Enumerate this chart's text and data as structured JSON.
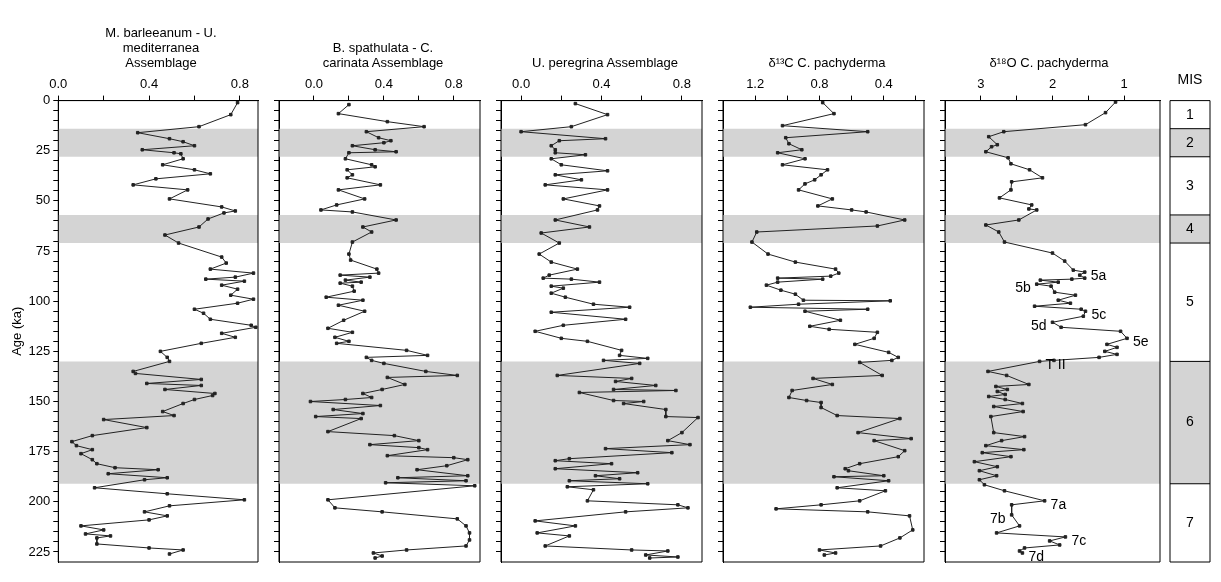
{
  "chart_data": [
    {
      "type": "line",
      "orientation": "horizontal",
      "title": "M. barleeanum - U. mediterranea Assemblage",
      "ylabel": "Age (ka)",
      "xlim": [
        0,
        0.88
      ],
      "xticks": [
        {
          "value": 0,
          "label": "0.0"
        },
        {
          "value": 0.2,
          "label": null
        },
        0.4,
        {
          "value": 0.6,
          "label": null
        },
        0.8
      ],
      "ylim": [
        230,
        0
      ],
      "yticks": [
        0,
        {
          "value": 5,
          "label": null
        },
        {
          "value": 10,
          "label": null
        },
        {
          "value": 15,
          "label": null
        },
        {
          "value": 20,
          "label": null
        },
        25,
        {
          "value": 30,
          "label": null
        },
        {
          "value": 35,
          "label": null
        },
        {
          "value": 40,
          "label": null
        },
        {
          "value": 45,
          "label": null
        },
        50,
        {
          "value": 55,
          "label": null
        },
        {
          "value": 60,
          "label": null
        },
        {
          "value": 65,
          "label": null
        },
        {
          "value": 70,
          "label": null
        },
        75,
        {
          "value": 80,
          "label": null
        },
        {
          "value": 85,
          "label": null
        },
        {
          "value": 90,
          "label": null
        },
        {
          "value": 95,
          "label": null
        },
        100,
        {
          "value": 105,
          "label": null
        },
        {
          "value": 110,
          "label": null
        },
        {
          "value": 115,
          "label": null
        },
        {
          "value": 120,
          "label": null
        },
        125,
        {
          "value": 130,
          "label": null
        },
        {
          "value": 135,
          "label": null
        },
        {
          "value": 140,
          "label": null
        },
        {
          "value": 145,
          "label": null
        },
        150,
        {
          "value": 155,
          "label": null
        },
        {
          "value": 160,
          "label": null
        },
        {
          "value": 165,
          "label": null
        },
        {
          "value": 170,
          "label": null
        },
        175,
        {
          "value": 180,
          "label": null
        },
        {
          "value": 185,
          "label": null
        },
        {
          "value": 190,
          "label": null
        },
        {
          "value": 195,
          "label": null
        },
        200,
        {
          "value": 205,
          "label": null
        },
        {
          "value": 210,
          "label": null
        },
        {
          "value": 215,
          "label": null
        },
        {
          "value": 220,
          "label": null
        },
        225
      ],
      "grid": false,
      "legend": false,
      "marker": "square",
      "line_style": "solid",
      "bands": [
        {
          "axis": "y",
          "from": 14,
          "to": 28,
          "color": "#d4d4d4"
        },
        {
          "axis": "y",
          "from": 57,
          "to": 71,
          "color": "#d4d4d4"
        },
        {
          "axis": "y",
          "from": 130,
          "to": 191,
          "color": "#d4d4d4"
        }
      ],
      "x": [
        1,
        7,
        13,
        16,
        19,
        20.5,
        22.5,
        24.5,
        26,
        26.5,
        29,
        32,
        34.5,
        36.5,
        39,
        42,
        44.5,
        49,
        53,
        55,
        56,
        59,
        63,
        67,
        71,
        78,
        81,
        84,
        86,
        88,
        89,
        90,
        92,
        94,
        97,
        99,
        101,
        104,
        106,
        109,
        112,
        113,
        116,
        118,
        121,
        125,
        128,
        130,
        135,
        136,
        139,
        141,
        142,
        144,
        146,
        147,
        149,
        151,
        155,
        157,
        159,
        163,
        167,
        170,
        172,
        174,
        176,
        179,
        181,
        183,
        184,
        186,
        188,
        189,
        193,
        196,
        199,
        202,
        205,
        207,
        209,
        212,
        214,
        216,
        217,
        218,
        221,
        223,
        224,
        226
      ],
      "series": [
        {
          "color": "#222222",
          "values": [
            0.79,
            0.76,
            0.62,
            0.35,
            0.49,
            0.55,
            0.6,
            0.37,
            0.51,
            0.54,
            0.55,
            0.46,
            0.6,
            0.67,
            0.43,
            0.33,
            0.57,
            0.49,
            0.72,
            0.78,
            0.73,
            0.66,
            0.62,
            0.47,
            0.53,
            0.72,
            0.74,
            0.67,
            0.86,
            0.78,
            0.65,
            0.82,
            0.72,
            0.79,
            0.76,
            0.86,
            0.79,
            0.6,
            0.64,
            0.67,
            0.85,
            0.87,
            0.72,
            0.78,
            0.63,
            0.45,
            0.48,
            0.49,
            0.33,
            0.34,
            0.63,
            0.39,
            0.63,
            0.47,
            0.69,
            0.68,
            0.6,
            0.55,
            0.46,
            0.51,
            0.2,
            0.39,
            0.15,
            0.06,
            0.08,
            0.15,
            0.1,
            0.15,
            0.17,
            0.25,
            0.44,
            0.22,
            0.48,
            0.38,
            0.16,
            0.48,
            0.82,
            0.49,
            0.38,
            0.48,
            0.4,
            0.1,
            0.2,
            0.12,
            0.23,
            0.17,
            0.17,
            0.4,
            0.55,
            0.49
          ]
        }
      ]
    },
    {
      "type": "line",
      "orientation": "horizontal",
      "title": "B. spathulata - C. carinata Assemblage",
      "tick_labels": "x",
      "xlim": [
        -0.2,
        0.95
      ],
      "xticks": [
        {
          "value": 0,
          "label": "0.0"
        },
        {
          "value": 0.2,
          "label": null
        },
        0.4,
        {
          "value": 0.6,
          "label": null
        },
        0.8
      ],
      "ylim": [
        230,
        0
      ],
      "yticks": [
        {
          "value": 0,
          "label": null
        },
        {
          "value": 5,
          "label": null
        },
        {
          "value": 10,
          "label": null
        },
        {
          "value": 15,
          "label": null
        },
        {
          "value": 20,
          "label": null
        },
        {
          "value": 25,
          "label": null
        },
        {
          "value": 30,
          "label": null
        },
        {
          "value": 35,
          "label": null
        },
        {
          "value": 40,
          "label": null
        },
        {
          "value": 45,
          "label": null
        },
        {
          "value": 50,
          "label": null
        },
        {
          "value": 55,
          "label": null
        },
        {
          "value": 60,
          "label": null
        },
        {
          "value": 65,
          "label": null
        },
        {
          "value": 70,
          "label": null
        },
        {
          "value": 75,
          "label": null
        },
        {
          "value": 80,
          "label": null
        },
        {
          "value": 85,
          "label": null
        },
        {
          "value": 90,
          "label": null
        },
        {
          "value": 95,
          "label": null
        },
        {
          "value": 100,
          "label": null
        },
        {
          "value": 105,
          "label": null
        },
        {
          "value": 110,
          "label": null
        },
        {
          "value": 115,
          "label": null
        },
        {
          "value": 120,
          "label": null
        },
        {
          "value": 125,
          "label": null
        },
        {
          "value": 130,
          "label": null
        },
        {
          "value": 135,
          "label": null
        },
        {
          "value": 140,
          "label": null
        },
        {
          "value": 145,
          "label": null
        },
        {
          "value": 150,
          "label": null
        },
        {
          "value": 155,
          "label": null
        },
        {
          "value": 160,
          "label": null
        },
        {
          "value": 165,
          "label": null
        },
        {
          "value": 170,
          "label": null
        },
        {
          "value": 175,
          "label": null
        },
        {
          "value": 180,
          "label": null
        },
        {
          "value": 185,
          "label": null
        },
        {
          "value": 190,
          "label": null
        },
        {
          "value": 195,
          "label": null
        },
        {
          "value": 200,
          "label": null
        },
        {
          "value": 205,
          "label": null
        },
        {
          "value": 210,
          "label": null
        },
        {
          "value": 215,
          "label": null
        },
        {
          "value": 220,
          "label": null
        },
        {
          "value": 225,
          "label": null
        }
      ],
      "grid": false,
      "legend": false,
      "marker": "square",
      "line_style": "solid",
      "bands": [
        {
          "axis": "y",
          "from": 14,
          "to": 28,
          "color": "#d4d4d4"
        },
        {
          "axis": "y",
          "from": 57,
          "to": 71,
          "color": "#d4d4d4"
        },
        {
          "axis": "y",
          "from": 130,
          "to": 191,
          "color": "#d4d4d4"
        }
      ],
      "x": [
        2,
        6.5,
        10.5,
        13,
        15.5,
        18.5,
        20,
        21,
        22.5,
        24.5,
        25.5,
        26,
        29,
        32,
        33,
        34.5,
        37,
        38.5,
        42,
        44.5,
        49,
        52,
        54.5,
        55.5,
        59.5,
        63,
        65.5,
        70.5,
        76.5,
        79.5,
        84,
        86,
        87,
        88,
        89.5,
        90.5,
        91,
        92.5,
        95,
        98,
        99.5,
        102,
        105,
        109.5,
        113.5,
        115.5,
        118,
        120,
        121,
        124.5,
        127,
        128,
        129.5,
        131,
        135,
        137,
        138,
        141.5,
        144,
        146,
        148,
        149,
        150,
        152,
        154,
        156,
        157.5,
        158.5,
        165,
        167,
        169.5,
        171.5,
        173,
        174,
        177,
        178,
        179,
        182,
        184,
        187,
        188,
        189.5,
        190.5,
        192,
        199,
        203,
        205,
        208.5,
        212,
        215.5,
        219,
        222,
        224,
        225.5,
        227,
        228
      ],
      "series": [
        {
          "color": "#222222",
          "values": [
            0.2,
            0.14,
            0.42,
            0.63,
            0.3,
            0.37,
            0.44,
            0.4,
            0.22,
            0.35,
            0.47,
            0.2,
            0.18,
            0.33,
            0.35,
            0.19,
            0.22,
            0.19,
            0.38,
            0.14,
            0.29,
            0.13,
            0.04,
            0.22,
            0.47,
            0.28,
            0.33,
            0.22,
            0.2,
            0.21,
            0.36,
            0.37,
            0.15,
            0.32,
            0.18,
            0.27,
            0.15,
            0.22,
            0.23,
            0.07,
            0.28,
            0.14,
            0.29,
            0.17,
            0.08,
            0.22,
            0.12,
            0.2,
            0.13,
            0.53,
            0.65,
            0.3,
            0.33,
            0.4,
            0.64,
            0.82,
            0.42,
            0.52,
            0.39,
            0.28,
            0.33,
            0.18,
            -0.02,
            0.38,
            0.11,
            0.28,
            0.01,
            0.27,
            0.08,
            0.46,
            0.6,
            0.32,
            0.6,
            0.65,
            0.42,
            0.8,
            0.88,
            0.76,
            0.59,
            0.88,
            0.48,
            0.87,
            0.41,
            0.92,
            0.08,
            0.12,
            0.39,
            0.82,
            0.87,
            0.89,
            0.89,
            0.87,
            0.53,
            0.34,
            0.39,
            0.35
          ]
        }
      ]
    },
    {
      "type": "line",
      "orientation": "horizontal",
      "title": "U. peregrina Assemblage",
      "tick_labels": "x",
      "xlim": [
        -0.1,
        0.9
      ],
      "xticks": [
        {
          "value": 0,
          "label": "0.0"
        },
        {
          "value": 0.2,
          "label": null
        },
        0.4,
        {
          "value": 0.6,
          "label": null
        },
        0.8
      ],
      "ylim": [
        230,
        0
      ],
      "yticks": [
        {
          "value": 0,
          "label": null
        },
        {
          "value": 5,
          "label": null
        },
        {
          "value": 10,
          "label": null
        },
        {
          "value": 15,
          "label": null
        },
        {
          "value": 20,
          "label": null
        },
        {
          "value": 25,
          "label": null
        },
        {
          "value": 30,
          "label": null
        },
        {
          "value": 35,
          "label": null
        },
        {
          "value": 40,
          "label": null
        },
        {
          "value": 45,
          "label": null
        },
        {
          "value": 50,
          "label": null
        },
        {
          "value": 55,
          "label": null
        },
        {
          "value": 60,
          "label": null
        },
        {
          "value": 65,
          "label": null
        },
        {
          "value": 70,
          "label": null
        },
        {
          "value": 75,
          "label": null
        },
        {
          "value": 80,
          "label": null
        },
        {
          "value": 85,
          "label": null
        },
        {
          "value": 90,
          "label": null
        },
        {
          "value": 95,
          "label": null
        },
        {
          "value": 100,
          "label": null
        },
        {
          "value": 105,
          "label": null
        },
        {
          "value": 110,
          "label": null
        },
        {
          "value": 115,
          "label": null
        },
        {
          "value": 120,
          "label": null
        },
        {
          "value": 125,
          "label": null
        },
        {
          "value": 130,
          "label": null
        },
        {
          "value": 135,
          "label": null
        },
        {
          "value": 140,
          "label": null
        },
        {
          "value": 145,
          "label": null
        },
        {
          "value": 150,
          "label": null
        },
        {
          "value": 155,
          "label": null
        },
        {
          "value": 160,
          "label": null
        },
        {
          "value": 165,
          "label": null
        },
        {
          "value": 170,
          "label": null
        },
        {
          "value": 175,
          "label": null
        },
        {
          "value": 180,
          "label": null
        },
        {
          "value": 185,
          "label": null
        },
        {
          "value": 190,
          "label": null
        },
        {
          "value": 195,
          "label": null
        },
        {
          "value": 200,
          "label": null
        },
        {
          "value": 205,
          "label": null
        },
        {
          "value": 210,
          "label": null
        },
        {
          "value": 215,
          "label": null
        },
        {
          "value": 220,
          "label": null
        },
        {
          "value": 225,
          "label": null
        }
      ],
      "grid": false,
      "legend": false,
      "marker": "square",
      "line_style": "solid",
      "bands": [
        {
          "axis": "y",
          "from": 14,
          "to": 28,
          "color": "#d4d4d4"
        },
        {
          "axis": "y",
          "from": 57,
          "to": 71,
          "color": "#d4d4d4"
        },
        {
          "axis": "y",
          "from": 130,
          "to": 191,
          "color": "#d4d4d4"
        }
      ],
      "x": [
        1.5,
        7,
        13,
        15.5,
        19,
        20,
        22.5,
        24.5,
        26,
        27,
        29,
        32,
        35,
        37,
        39.5,
        42,
        44.5,
        49,
        52.5,
        54.5,
        59.5,
        63,
        66,
        71,
        76.5,
        80.5,
        84,
        87,
        88.5,
        89,
        90.5,
        92.5,
        93.5,
        96,
        98,
        101.5,
        103,
        105.5,
        109,
        112,
        115,
        118.5,
        120,
        124.5,
        127,
        128.5,
        129.5,
        131,
        137,
        138.5,
        140,
        142,
        144,
        144.5,
        145.5,
        149.5,
        150,
        151,
        154,
        157.5,
        158,
        165.5,
        169.5,
        171.5,
        173.5,
        175.5,
        178.5,
        179.5,
        181,
        183.5,
        185.5,
        187,
        188.5,
        189.5,
        191,
        192.5,
        194,
        199.5,
        201.5,
        203,
        205,
        209.5,
        212,
        215.5,
        217,
        222,
        224,
        224.5,
        226.5,
        227.5,
        228
      ],
      "series": [
        {
          "color": "#222222",
          "values": [
            0.27,
            0.43,
            0.25,
            0.0,
            0.42,
            0.19,
            0.15,
            0.17,
            0.17,
            0.32,
            0.15,
            0.2,
            0.43,
            0.17,
            0.3,
            0.12,
            0.43,
            0.21,
            0.39,
            0.38,
            0.17,
            0.34,
            0.1,
            0.19,
            0.09,
            0.15,
            0.28,
            0.14,
            0.11,
            0.25,
            0.39,
            0.15,
            0.21,
            0.15,
            0.22,
            0.36,
            0.54,
            0.15,
            0.52,
            0.21,
            0.07,
            0.2,
            0.33,
            0.5,
            0.49,
            0.63,
            0.41,
            0.59,
            0.18,
            0.55,
            0.47,
            0.67,
            0.46,
            0.77,
            0.29,
            0.46,
            0.61,
            0.51,
            0.72,
            0.72,
            0.88,
            0.8,
            0.73,
            0.84,
            0.42,
            0.75,
            0.24,
            0.17,
            0.45,
            0.17,
            0.58,
            0.37,
            0.49,
            0.24,
            0.63,
            0.23,
            0.36,
            0.33,
            0.78,
            0.83,
            0.52,
            0.07,
            0.27,
            0.08,
            0.24,
            0.12,
            0.55,
            0.73,
            0.62,
            0.78,
            0.64
          ]
        }
      ]
    },
    {
      "type": "line",
      "orientation": "horizontal",
      "title": "δ¹³C C. pachyderma",
      "tick_labels": "x",
      "xlim": [
        1.4,
        0.15
      ],
      "xticks": [
        1.2,
        {
          "value": 1.0,
          "label": null
        },
        0.8,
        {
          "value": 0.6,
          "label": null
        },
        0.4,
        {
          "value": 0.2,
          "label": null
        }
      ],
      "ylim": [
        230,
        0
      ],
      "yticks": [
        {
          "value": 0,
          "label": null
        },
        {
          "value": 5,
          "label": null
        },
        {
          "value": 10,
          "label": null
        },
        {
          "value": 15,
          "label": null
        },
        {
          "value": 20,
          "label": null
        },
        {
          "value": 25,
          "label": null
        },
        {
          "value": 30,
          "label": null
        },
        {
          "value": 35,
          "label": null
        },
        {
          "value": 40,
          "label": null
        },
        {
          "value": 45,
          "label": null
        },
        {
          "value": 50,
          "label": null
        },
        {
          "value": 55,
          "label": null
        },
        {
          "value": 60,
          "label": null
        },
        {
          "value": 65,
          "label": null
        },
        {
          "value": 70,
          "label": null
        },
        {
          "value": 75,
          "label": null
        },
        {
          "value": 80,
          "label": null
        },
        {
          "value": 85,
          "label": null
        },
        {
          "value": 90,
          "label": null
        },
        {
          "value": 95,
          "label": null
        },
        {
          "value": 100,
          "label": null
        },
        {
          "value": 105,
          "label": null
        },
        {
          "value": 110,
          "label": null
        },
        {
          "value": 115,
          "label": null
        },
        {
          "value": 120,
          "label": null
        },
        {
          "value": 125,
          "label": null
        },
        {
          "value": 130,
          "label": null
        },
        {
          "value": 135,
          "label": null
        },
        {
          "value": 140,
          "label": null
        },
        {
          "value": 145,
          "label": null
        },
        {
          "value": 150,
          "label": null
        },
        {
          "value": 155,
          "label": null
        },
        {
          "value": 160,
          "label": null
        },
        {
          "value": 165,
          "label": null
        },
        {
          "value": 170,
          "label": null
        },
        {
          "value": 175,
          "label": null
        },
        {
          "value": 180,
          "label": null
        },
        {
          "value": 185,
          "label": null
        },
        {
          "value": 190,
          "label": null
        },
        {
          "value": 195,
          "label": null
        },
        {
          "value": 200,
          "label": null
        },
        {
          "value": 205,
          "label": null
        },
        {
          "value": 210,
          "label": null
        },
        {
          "value": 215,
          "label": null
        },
        {
          "value": 220,
          "label": null
        },
        {
          "value": 225,
          "label": null
        }
      ],
      "grid": false,
      "legend": false,
      "marker": "square",
      "line_style": "solid",
      "bands": [
        {
          "axis": "y",
          "from": 14,
          "to": 28,
          "color": "#d4d4d4"
        },
        {
          "axis": "y",
          "from": 57,
          "to": 71,
          "color": "#d4d4d4"
        },
        {
          "axis": "y",
          "from": 130,
          "to": 191,
          "color": "#d4d4d4"
        }
      ],
      "x": [
        1,
        6.5,
        12.5,
        15.5,
        18.5,
        21.5,
        24.5,
        26,
        29,
        32,
        34.5,
        37,
        39.5,
        41.5,
        44.5,
        49,
        52.5,
        54.5,
        55.5,
        59.5,
        62.5,
        65.5,
        70.5,
        76.5,
        80.5,
        84,
        86,
        87.5,
        88.5,
        89,
        90.5,
        92,
        94.5,
        96.5,
        99.5,
        99.8,
        101.5,
        103,
        104,
        105,
        109.5,
        112.5,
        114,
        115.5,
        118.5,
        121.5,
        125.5,
        128,
        129.5,
        130.5,
        137,
        138.5,
        141.5,
        144.5,
        148,
        149.5,
        150.5,
        153,
        157,
        158.5,
        165.5,
        168.5,
        169.5,
        174.5,
        177.5,
        181,
        183.5,
        184.5,
        187,
        187.5,
        189.5,
        193,
        194.5,
        199.5,
        201.5,
        203.5,
        205,
        207,
        214,
        218,
        222,
        224,
        225.5,
        226.5
      ],
      "series": [
        {
          "color": "#222222",
          "values": [
            0.78,
            0.71,
            1.03,
            0.5,
            1.01,
            0.99,
            0.91,
            1.06,
            0.89,
            1.03,
            0.75,
            0.79,
            0.83,
            0.89,
            0.93,
            0.72,
            0.81,
            0.6,
            0.51,
            0.27,
            0.44,
            1.19,
            1.22,
            1.12,
            0.95,
            0.7,
            0.68,
            0.73,
            1.06,
            0.78,
            1.06,
            1.13,
            1.04,
            0.95,
            0.9,
            0.36,
            0.93,
            1.23,
            0.5,
            0.89,
            0.67,
            0.86,
            0.74,
            0.44,
            0.46,
            0.58,
            0.37,
            0.31,
            0.35,
            0.55,
            0.41,
            0.84,
            0.72,
            0.97,
            0.99,
            0.88,
            0.79,
            0.79,
            0.69,
            0.3,
            0.56,
            0.23,
            0.46,
            0.27,
            0.31,
            0.55,
            0.64,
            0.62,
            0.4,
            0.71,
            0.37,
            0.69,
            0.39,
            0.55,
            0.79,
            1.07,
            0.5,
            0.24,
            0.22,
            0.3,
            0.42,
            0.8,
            0.7,
            0.77
          ]
        }
      ]
    },
    {
      "type": "line",
      "orientation": "horizontal",
      "title": "δ¹⁸O C. pachyderma",
      "tick_labels": "x",
      "xlim": [
        3.5,
        0.5
      ],
      "xticks": [
        3,
        {
          "value": 2.5,
          "label": null
        },
        2,
        {
          "value": 1.5,
          "label": null
        },
        1
      ],
      "ylim": [
        230,
        0
      ],
      "yticks": [
        {
          "value": 0,
          "label": null
        },
        {
          "value": 5,
          "label": null
        },
        {
          "value": 10,
          "label": null
        },
        {
          "value": 15,
          "label": null
        },
        {
          "value": 20,
          "label": null
        },
        {
          "value": 25,
          "label": null
        },
        {
          "value": 30,
          "label": null
        },
        {
          "value": 35,
          "label": null
        },
        {
          "value": 40,
          "label": null
        },
        {
          "value": 45,
          "label": null
        },
        {
          "value": 50,
          "label": null
        },
        {
          "value": 55,
          "label": null
        },
        {
          "value": 60,
          "label": null
        },
        {
          "value": 65,
          "label": null
        },
        {
          "value": 70,
          "label": null
        },
        {
          "value": 75,
          "label": null
        },
        {
          "value": 80,
          "label": null
        },
        {
          "value": 85,
          "label": null
        },
        {
          "value": 90,
          "label": null
        },
        {
          "value": 95,
          "label": null
        },
        {
          "value": 100,
          "label": null
        },
        {
          "value": 105,
          "label": null
        },
        {
          "value": 110,
          "label": null
        },
        {
          "value": 115,
          "label": null
        },
        {
          "value": 120,
          "label": null
        },
        {
          "value": 125,
          "label": null
        },
        {
          "value": 130,
          "label": null
        },
        {
          "value": 135,
          "label": null
        },
        {
          "value": 140,
          "label": null
        },
        {
          "value": 145,
          "label": null
        },
        {
          "value": 150,
          "label": null
        },
        {
          "value": 155,
          "label": null
        },
        {
          "value": 160,
          "label": null
        },
        {
          "value": 165,
          "label": null
        },
        {
          "value": 170,
          "label": null
        },
        {
          "value": 175,
          "label": null
        },
        {
          "value": 180,
          "label": null
        },
        {
          "value": 185,
          "label": null
        },
        {
          "value": 190,
          "label": null
        },
        {
          "value": 195,
          "label": null
        },
        {
          "value": 200,
          "label": null
        },
        {
          "value": 205,
          "label": null
        },
        {
          "value": 210,
          "label": null
        },
        {
          "value": 215,
          "label": null
        },
        {
          "value": 220,
          "label": null
        },
        {
          "value": 225,
          "label": null
        }
      ],
      "grid": false,
      "legend": false,
      "marker": "square",
      "line_style": "solid",
      "bands": [
        {
          "axis": "y",
          "from": 14,
          "to": 28,
          "color": "#d4d4d4",
          "label": "2"
        },
        {
          "axis": "y",
          "from": 57,
          "to": 71,
          "color": "#d4d4d4",
          "label": "4"
        },
        {
          "axis": "y",
          "from": 130,
          "to": 191,
          "color": "#d4d4d4",
          "label": "6"
        }
      ],
      "annotations": [
        "MIS",
        "1",
        "3",
        "5",
        "7",
        {
          "text": "5a",
          "x": 1.55,
          "y": 85.5
        },
        {
          "text": "5b",
          "x": 2.22,
          "y": 91.5
        },
        {
          "text": "5c",
          "x": 1.54,
          "y": 105
        },
        {
          "text": "5d",
          "x": 2.0,
          "y": 110.5
        },
        {
          "text": "5e",
          "x": 0.96,
          "y": 118.5
        },
        {
          "text": "T II",
          "x": 2.18,
          "y": 130
        },
        {
          "text": "7a",
          "x": 2.11,
          "y": 199.5
        },
        {
          "text": "7b",
          "x": 2.57,
          "y": 206.5
        },
        {
          "text": "7c",
          "x": 1.82,
          "y": 217.5
        },
        {
          "text": "7d",
          "x": 2.42,
          "y": 225.5
        }
      ],
      "x": [
        0.7,
        6,
        12,
        15.5,
        18,
        22,
        23,
        25.5,
        28.5,
        31.5,
        34.5,
        38.5,
        40.5,
        44.5,
        48.5,
        52,
        54,
        54.5,
        59.5,
        62,
        65.5,
        70.5,
        76,
        80,
        84.5,
        85.5,
        87,
        88.5,
        89,
        89.5,
        90.5,
        91.5,
        92.5,
        95.5,
        97,
        99.5,
        101,
        102.5,
        104,
        105,
        107.5,
        110.5,
        113,
        115,
        118.5,
        121.5,
        123,
        125,
        126.5,
        128,
        129.5,
        130,
        135,
        137,
        141.5,
        142.5,
        144,
        145,
        146.5,
        147.5,
        149,
        151,
        152.5,
        155,
        157.5,
        165.5,
        167.5,
        169.5,
        172,
        174,
        175.5,
        177.5,
        180,
        182.5,
        184.5,
        187,
        189,
        191.5,
        194.5,
        199.5,
        201.5,
        206.5,
        212,
        215.5,
        217.5,
        219.5,
        221.5,
        223,
        224.5,
        225.5
      ],
      "series": [
        {
          "color": "#222222",
          "values": [
            1.12,
            1.26,
            1.54,
            2.68,
            2.89,
            2.77,
            2.85,
            2.93,
            2.62,
            2.58,
            2.32,
            2.14,
            2.57,
            2.58,
            2.74,
            2.29,
            2.33,
            2.22,
            2.47,
            2.93,
            2.75,
            2.67,
            2.0,
            1.83,
            1.71,
            1.55,
            1.62,
            1.55,
            1.73,
            2.17,
            1.92,
            2.22,
            2.02,
            1.97,
            1.68,
            1.92,
            1.75,
            2.25,
            1.6,
            1.54,
            1.57,
            2.0,
            1.88,
            1.05,
            0.96,
            1.24,
            1.1,
            1.27,
            1.1,
            1.35,
            1.98,
            2.18,
            2.9,
            2.64,
            2.33,
            2.79,
            2.63,
            2.77,
            2.66,
            2.89,
            2.66,
            2.42,
            2.82,
            2.41,
            2.86,
            2.82,
            2.39,
            2.71,
            2.93,
            2.4,
            2.98,
            2.58,
            3.09,
            2.77,
            3.02,
            2.78,
            3.02,
            2.95,
            2.67,
            2.11,
            2.57,
            2.57,
            2.46,
            2.78,
            1.82,
            2.04,
            1.9,
            2.39,
            2.46,
            2.42
          ]
        }
      ]
    }
  ]
}
